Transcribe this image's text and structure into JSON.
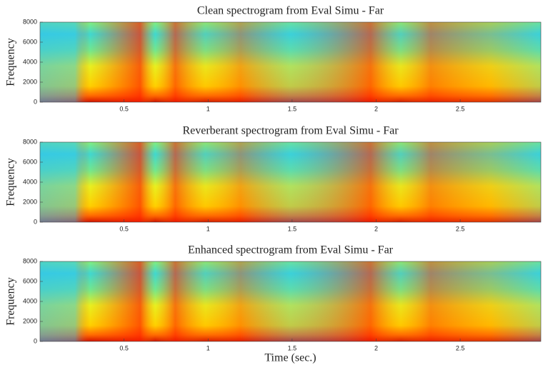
{
  "chart_data": [
    {
      "type": "spectrogram",
      "title": "Clean spectrogram from Eval Simu - Far",
      "y_label": "Frequency",
      "xlim": [
        0,
        2.98
      ],
      "xticks": [
        0.5,
        1,
        1.5,
        2,
        2.5
      ],
      "ylim": [
        0,
        8000
      ],
      "yticks": [
        0,
        2000,
        4000,
        6000,
        8000
      ]
    },
    {
      "type": "spectrogram",
      "title": "Reverberant spectrogram from Eval Simu - Far",
      "y_label": "Frequency",
      "xlim": [
        0,
        2.98
      ],
      "xticks": [
        0.5,
        1,
        1.5,
        2,
        2.5
      ],
      "ylim": [
        0,
        8000
      ],
      "yticks": [
        0,
        2000,
        4000,
        6000,
        8000
      ]
    },
    {
      "type": "spectrogram",
      "title": "Enhanced spectrogram from Eval Simu - Far",
      "y_label": "Frequency",
      "x_label": "Time (sec.)",
      "xlim": [
        0,
        2.98
      ],
      "xticks": [
        0.5,
        1,
        1.5,
        2,
        2.5
      ],
      "ylim": [
        0,
        8000
      ],
      "yticks": [
        0,
        2000,
        4000,
        6000,
        8000
      ]
    }
  ]
}
